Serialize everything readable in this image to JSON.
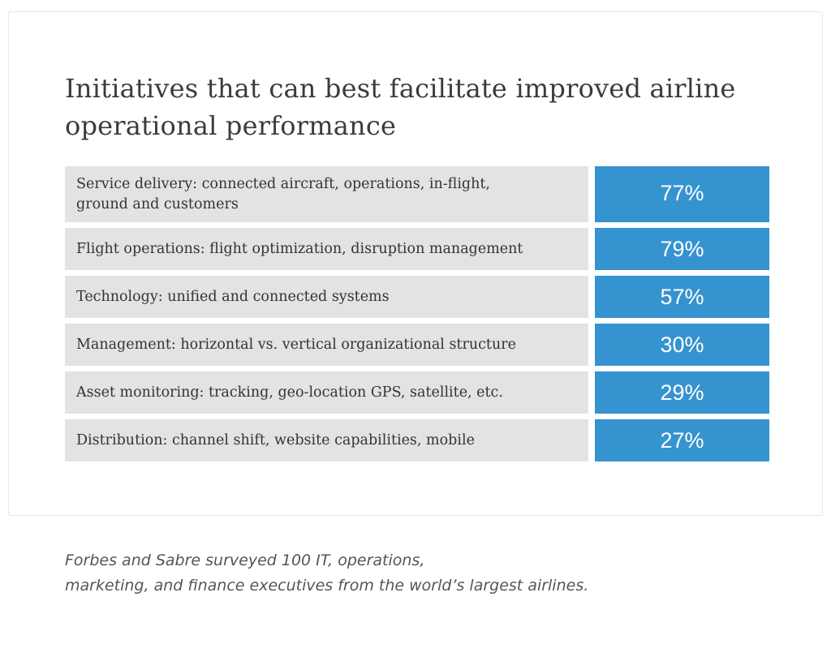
{
  "chart_data": {
    "type": "table",
    "title": "Initiatives that can best facilitate improved airline operational performance",
    "rows": [
      {
        "label_line1": "Service delivery: connected aircraft, operations, in-flight,",
        "label_line2": "ground and customers",
        "value": 77,
        "value_label": "77%"
      },
      {
        "label_line1": "Flight operations: flight optimization, disruption management",
        "label_line2": "",
        "value": 79,
        "value_label": "79%"
      },
      {
        "label_line1": "Technology: unified and connected systems",
        "label_line2": "",
        "value": 57,
        "value_label": "57%"
      },
      {
        "label_line1": "Management: horizontal vs. vertical organizational structure",
        "label_line2": "",
        "value": 30,
        "value_label": "30%"
      },
      {
        "label_line1": "Asset monitoring: tracking, geo-location GPS, satellite, etc.",
        "label_line2": "",
        "value": 29,
        "value_label": "29%"
      },
      {
        "label_line1": "Distribution: channel shift, website capabilities, mobile",
        "label_line2": "",
        "value": 27,
        "value_label": "27%"
      }
    ],
    "colors": {
      "label_background": "#e3e3e3",
      "value_background": "#3593cf",
      "value_text": "#ffffff"
    }
  },
  "caption": {
    "line1": "Forbes and Sabre surveyed 100 IT, operations,",
    "line2": "marketing, and finance executives from the world’s largest airlines."
  }
}
